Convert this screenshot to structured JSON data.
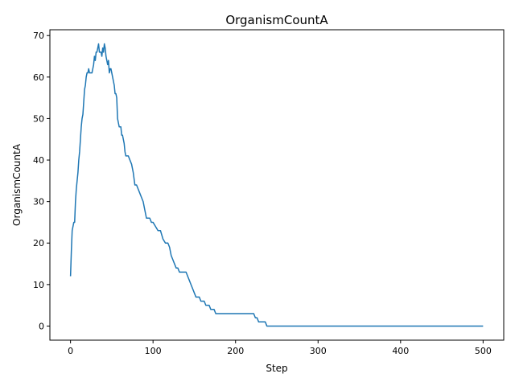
{
  "chart_data": {
    "type": "line",
    "title": "OrganismCountA",
    "xlabel": "Step",
    "ylabel": "OrganismCountA",
    "xlim": [
      -25,
      525
    ],
    "ylim": [
      -3.4,
      71.4
    ],
    "xticks": [
      0,
      100,
      200,
      300,
      400,
      500
    ],
    "yticks": [
      0,
      10,
      20,
      30,
      40,
      50,
      60,
      70
    ],
    "grid": false,
    "legend": "none",
    "series": [
      {
        "color": "#1f77b4",
        "x": [
          0,
          1,
          2,
          3,
          4,
          5,
          6,
          7,
          8,
          9,
          10,
          11,
          12,
          13,
          14,
          15,
          16,
          17,
          18,
          19,
          20,
          21,
          22,
          23,
          24,
          25,
          26,
          27,
          28,
          29,
          30,
          31,
          32,
          33,
          34,
          35,
          36,
          37,
          38,
          39,
          40,
          41,
          42,
          43,
          44,
          45,
          46,
          47,
          48,
          49,
          50,
          51,
          52,
          53,
          54,
          55,
          56,
          57,
          58,
          59,
          60,
          61,
          62,
          63,
          64,
          65,
          66,
          67,
          68,
          69,
          70,
          72,
          74,
          76,
          78,
          80,
          82,
          84,
          86,
          88,
          90,
          92,
          94,
          96,
          98,
          100,
          103,
          106,
          109,
          112,
          115,
          118,
          120,
          122,
          124,
          126,
          128,
          130,
          132,
          134,
          136,
          138,
          140,
          142,
          144,
          146,
          148,
          150,
          152,
          154,
          156,
          158,
          160,
          162,
          164,
          166,
          168,
          170,
          172,
          174,
          176,
          178,
          180,
          182,
          185,
          190,
          200,
          210,
          220,
          222,
          224,
          226,
          228,
          230,
          232,
          234,
          236,
          238,
          240,
          260,
          300,
          350,
          400,
          450,
          500
        ],
        "y": [
          12,
          18,
          23,
          24,
          25,
          25,
          30,
          33,
          35,
          37,
          40,
          42,
          45,
          48,
          50,
          51,
          54,
          57,
          58,
          60,
          61,
          61,
          62,
          61,
          61,
          61,
          61,
          62,
          63,
          65,
          64,
          66,
          66,
          67,
          68,
          66,
          66,
          66,
          65,
          67,
          66,
          68,
          67,
          65,
          64,
          63,
          64,
          61,
          62,
          62,
          61,
          60,
          59,
          58,
          56,
          56,
          55,
          50,
          49,
          48,
          48,
          48,
          46,
          46,
          45,
          44,
          42,
          41,
          41,
          41,
          41,
          40,
          39,
          37,
          34,
          34,
          33,
          32,
          31,
          30,
          28,
          26,
          26,
          26,
          25,
          25,
          24,
          23,
          23,
          21,
          20,
          20,
          19,
          17,
          16,
          15,
          14,
          14,
          13,
          13,
          13,
          13,
          13,
          12,
          11,
          10,
          9,
          8,
          7,
          7,
          7,
          6,
          6,
          6,
          5,
          5,
          5,
          4,
          4,
          4,
          3,
          3,
          3,
          3,
          3,
          3,
          3,
          3,
          3,
          3,
          2,
          2,
          1,
          1,
          1,
          1,
          1,
          0,
          0,
          0,
          0,
          0,
          0,
          0,
          0
        ]
      }
    ]
  }
}
